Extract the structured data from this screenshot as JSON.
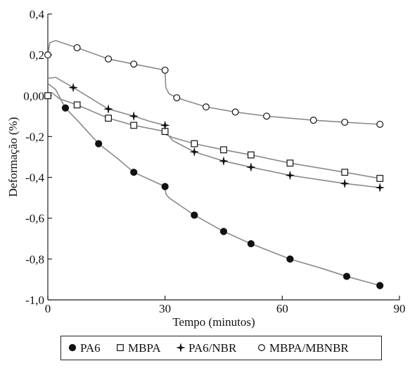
{
  "chart_data": {
    "type": "line",
    "title": "",
    "xlabel": "Tempo (minutos)",
    "ylabel": "Deformação (%)",
    "xlim": [
      0,
      90
    ],
    "ylim": [
      -1.0,
      0.4
    ],
    "xticks": [
      0,
      30,
      60,
      90
    ],
    "xtick_labels": [
      "0",
      "30",
      "60",
      "90"
    ],
    "yticks": [
      -1.0,
      -0.8,
      -0.6,
      -0.4,
      -0.2,
      0.0,
      0.2,
      0.4
    ],
    "ytick_labels": [
      "-1,0",
      "-0,8",
      "-0,6",
      "-0,4",
      "-0,2",
      "0,00",
      "0,2",
      "0,4"
    ],
    "grid": false,
    "legend_position": "bottom",
    "line_color": "#8a8a8a",
    "series": [
      {
        "name": "PA6",
        "marker": "filled-circle",
        "curve": [
          [
            0,
            0.06
          ],
          [
            2,
            0.03
          ],
          [
            4.5,
            -0.06
          ],
          [
            8,
            -0.13
          ],
          [
            13,
            -0.235
          ],
          [
            18,
            -0.31
          ],
          [
            22,
            -0.375
          ],
          [
            26,
            -0.41
          ],
          [
            30,
            -0.445
          ],
          [
            30.2,
            -0.48
          ],
          [
            31,
            -0.5
          ],
          [
            37.5,
            -0.585
          ],
          [
            45,
            -0.665
          ],
          [
            52,
            -0.725
          ],
          [
            62,
            -0.8
          ],
          [
            70,
            -0.845
          ],
          [
            76.5,
            -0.885
          ],
          [
            85,
            -0.93
          ]
        ],
        "points": [
          [
            4.5,
            -0.06
          ],
          [
            13,
            -0.235
          ],
          [
            22,
            -0.375
          ],
          [
            30,
            -0.445
          ],
          [
            37.5,
            -0.585
          ],
          [
            45,
            -0.665
          ],
          [
            52,
            -0.725
          ],
          [
            62,
            -0.8
          ],
          [
            76.5,
            -0.885
          ],
          [
            85,
            -0.93
          ]
        ]
      },
      {
        "name": "MBPA",
        "marker": "open-square",
        "curve": [
          [
            0,
            0.0
          ],
          [
            1,
            0.015
          ],
          [
            3,
            -0.015
          ],
          [
            7.5,
            -0.045
          ],
          [
            15.5,
            -0.11
          ],
          [
            22,
            -0.145
          ],
          [
            26,
            -0.16
          ],
          [
            30,
            -0.175
          ],
          [
            30.2,
            -0.19
          ],
          [
            32,
            -0.205
          ],
          [
            37.5,
            -0.235
          ],
          [
            45,
            -0.265
          ],
          [
            52,
            -0.29
          ],
          [
            62,
            -0.33
          ],
          [
            76,
            -0.375
          ],
          [
            85,
            -0.405
          ]
        ],
        "points": [
          [
            0,
            0.0
          ],
          [
            7.5,
            -0.045
          ],
          [
            15.5,
            -0.11
          ],
          [
            22,
            -0.145
          ],
          [
            30,
            -0.175
          ],
          [
            37.5,
            -0.235
          ],
          [
            45,
            -0.265
          ],
          [
            52,
            -0.29
          ],
          [
            62,
            -0.33
          ],
          [
            76,
            -0.375
          ],
          [
            85,
            -0.405
          ]
        ]
      },
      {
        "name": "PA6/NBR",
        "marker": "filled-star",
        "curve": [
          [
            0,
            0.085
          ],
          [
            2,
            0.09
          ],
          [
            6.5,
            0.04
          ],
          [
            15.5,
            -0.065
          ],
          [
            22,
            -0.1
          ],
          [
            26,
            -0.125
          ],
          [
            30,
            -0.145
          ],
          [
            30.2,
            -0.18
          ],
          [
            32,
            -0.22
          ],
          [
            37.5,
            -0.275
          ],
          [
            45,
            -0.32
          ],
          [
            52,
            -0.35
          ],
          [
            62,
            -0.39
          ],
          [
            76,
            -0.43
          ],
          [
            85,
            -0.45
          ]
        ],
        "points": [
          [
            6.5,
            0.04
          ],
          [
            15.5,
            -0.065
          ],
          [
            22,
            -0.1
          ],
          [
            30,
            -0.145
          ],
          [
            37.5,
            -0.275
          ],
          [
            45,
            -0.32
          ],
          [
            52,
            -0.35
          ],
          [
            62,
            -0.39
          ],
          [
            76,
            -0.43
          ],
          [
            85,
            -0.45
          ]
        ]
      },
      {
        "name": "MBPA/MBNBR",
        "marker": "open-circle",
        "curve": [
          [
            0,
            0.2
          ],
          [
            0.5,
            0.26
          ],
          [
            2,
            0.27
          ],
          [
            7.5,
            0.235
          ],
          [
            15.5,
            0.18
          ],
          [
            22,
            0.155
          ],
          [
            26,
            0.14
          ],
          [
            30,
            0.125
          ],
          [
            30.2,
            0.04
          ],
          [
            31,
            0.01
          ],
          [
            33,
            -0.01
          ],
          [
            40.5,
            -0.055
          ],
          [
            48,
            -0.08
          ],
          [
            56,
            -0.1
          ],
          [
            68,
            -0.12
          ],
          [
            76,
            -0.13
          ],
          [
            85,
            -0.14
          ]
        ],
        "points": [
          [
            0,
            0.2
          ],
          [
            7.5,
            0.235
          ],
          [
            15.5,
            0.18
          ],
          [
            22,
            0.155
          ],
          [
            30,
            0.125
          ],
          [
            33,
            -0.01
          ],
          [
            40.5,
            -0.055
          ],
          [
            48,
            -0.08
          ],
          [
            56,
            -0.1
          ],
          [
            68,
            -0.12
          ],
          [
            76,
            -0.13
          ],
          [
            85,
            -0.14
          ]
        ]
      }
    ]
  }
}
